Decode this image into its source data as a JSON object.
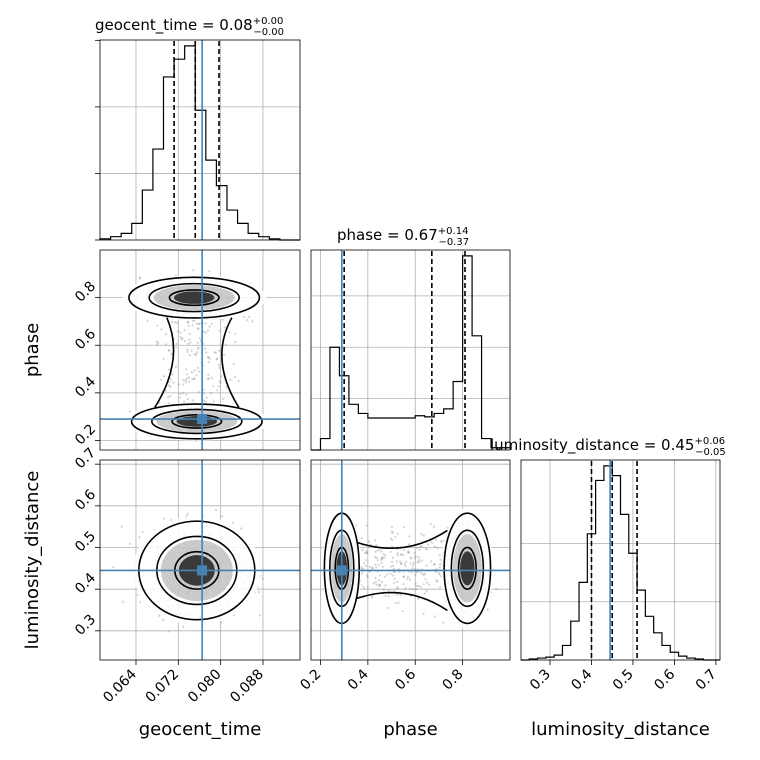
{
  "chart_data": {
    "type": "corner",
    "parameters": [
      {
        "name": "geocent_time",
        "label": "geocent_time",
        "range": [
          0.0572,
          0.095
        ],
        "ticks": [
          0.064,
          0.072,
          0.08,
          0.088
        ],
        "tick_labels": [
          "0.064",
          "0.072",
          "0.080",
          "0.088"
        ],
        "truth": 0.0765,
        "quantiles": [
          0.0712,
          0.0752,
          0.0797
        ]
      },
      {
        "name": "phase",
        "label": "phase",
        "range": [
          0.16,
          1.0
        ],
        "ticks": [
          0.2,
          0.4,
          0.6,
          0.8
        ],
        "tick_labels": [
          "0.2",
          "0.4",
          "0.6",
          "0.8"
        ],
        "truth": 0.29,
        "quantiles": [
          0.3,
          0.67,
          0.81
        ]
      },
      {
        "name": "luminosity_distance",
        "label": "luminosity_distance",
        "range": [
          0.23,
          0.71
        ],
        "ticks": [
          0.3,
          0.4,
          0.5,
          0.6,
          0.7
        ],
        "tick_labels": [
          "0.3",
          "0.4",
          "0.5",
          "0.6",
          "0.7"
        ],
        "truth": 0.445,
        "quantiles": [
          0.4,
          0.45,
          0.51
        ]
      }
    ],
    "row_axis_ticks": {
      "phase": {
        "ticks": [
          0.2,
          0.4,
          0.6,
          0.8
        ],
        "tick_labels": [
          "0.2",
          "0.4",
          "0.6",
          "0.8"
        ],
        "range": [
          0.16,
          1.0
        ]
      },
      "luminosity_distance": {
        "ticks": [
          0.3,
          0.4,
          0.5,
          0.6,
          0.7
        ],
        "tick_labels": [
          "0.3",
          "0.4",
          "0.5",
          "0.6",
          "0.7"
        ],
        "range": [
          0.23,
          0.71
        ]
      }
    },
    "titles": [
      {
        "main": "geocent_time = 0.08",
        "plus": "+0.00",
        "minus": "−0.00"
      },
      {
        "main": "phase = 0.67",
        "plus": "+0.14",
        "minus": "−0.37"
      },
      {
        "main": "luminosity_distance = 0.45",
        "plus": "+0.06",
        "minus": "−0.05"
      }
    ],
    "histograms": {
      "geocent_time": {
        "bin_edges": [
          0.0572,
          0.0592,
          0.0612,
          0.0632,
          0.0652,
          0.0672,
          0.0692,
          0.0712,
          0.0732,
          0.0752,
          0.0772,
          0.0792,
          0.0812,
          0.0832,
          0.0852,
          0.0872,
          0.0892,
          0.0912,
          0.095
        ],
        "counts": [
          1,
          3,
          6,
          15,
          45,
          82,
          147,
          163,
          175,
          117,
          72,
          49,
          27,
          15,
          6,
          3,
          1,
          0
        ]
      },
      "phase": {
        "bin_edges": [
          0.16,
          0.2,
          0.24,
          0.28,
          0.32,
          0.36,
          0.4,
          0.44,
          0.48,
          0.52,
          0.56,
          0.6,
          0.64,
          0.68,
          0.72,
          0.76,
          0.8,
          0.84,
          0.88,
          0.92,
          1.0
        ],
        "counts": [
          0,
          10,
          90,
          65,
          40,
          32,
          28,
          28,
          28,
          28,
          28,
          30,
          29,
          32,
          36,
          60,
          170,
          100,
          10,
          2
        ]
      },
      "luminosity_distance": {
        "bin_edges": [
          0.23,
          0.25,
          0.27,
          0.29,
          0.31,
          0.33,
          0.35,
          0.37,
          0.39,
          0.41,
          0.43,
          0.45,
          0.47,
          0.49,
          0.51,
          0.53,
          0.55,
          0.57,
          0.59,
          0.61,
          0.63,
          0.65,
          0.67,
          0.69,
          0.71
        ],
        "counts": [
          0,
          1,
          2,
          3,
          5,
          15,
          40,
          80,
          130,
          185,
          200,
          190,
          150,
          110,
          72,
          45,
          28,
          15,
          8,
          4,
          2,
          1,
          0,
          0
        ]
      }
    },
    "density_peaks": {
      "phase_vs_geocent_time": [
        {
          "x": 0.075,
          "y": 0.8
        },
        {
          "x": 0.0755,
          "y": 0.28
        }
      ],
      "luminosity_distance_vs_geocent_time": [
        {
          "x": 0.0755,
          "y": 0.445
        }
      ],
      "luminosity_distance_vs_phase": [
        {
          "x": 0.29,
          "y": 0.45
        },
        {
          "x": 0.82,
          "y": 0.45
        }
      ]
    },
    "colors": {
      "truth": "#4682b4",
      "lines": "#000000",
      "grid": "#b0b0b0",
      "points": "#7f7f7f"
    }
  }
}
